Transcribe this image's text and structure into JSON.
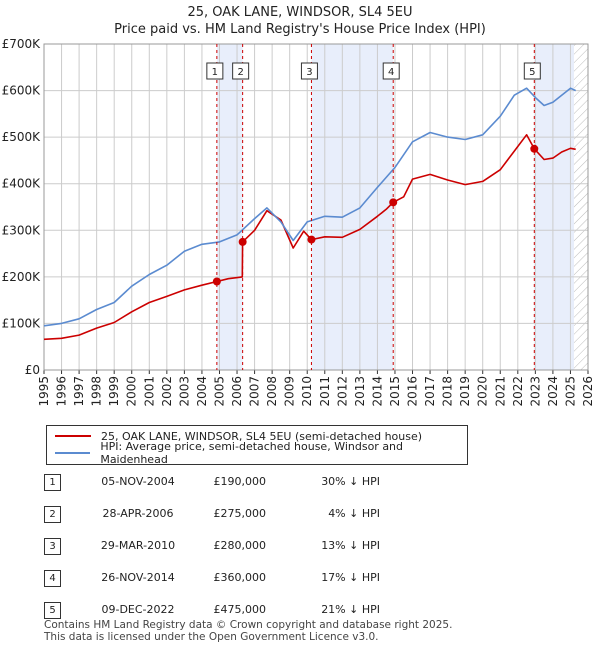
{
  "title_line1": "25, OAK LANE, WINDSOR, SL4 5EU",
  "title_line2": "Price paid vs. HM Land Registry's House Price Index (HPI)",
  "legend": {
    "property": "25, OAK LANE, WINDSOR, SL4 5EU (semi-detached house)",
    "hpi": "HPI: Average price, semi-detached house, Windsor and Maidenhead"
  },
  "colors": {
    "property_line": "#cc0000",
    "hpi_line": "#5b8bd0",
    "highlight_band": "#e8eefb",
    "marker_line": "#cc0000",
    "grid": "#cccccc"
  },
  "sales": [
    {
      "num": "1",
      "date": "05-NOV-2004",
      "price": "£190,000",
      "hpi": "30% ↓ HPI"
    },
    {
      "num": "2",
      "date": "28-APR-2006",
      "price": "£275,000",
      "hpi": "4% ↓ HPI"
    },
    {
      "num": "3",
      "date": "29-MAR-2010",
      "price": "£280,000",
      "hpi": "13% ↓ HPI"
    },
    {
      "num": "4",
      "date": "26-NOV-2014",
      "price": "£360,000",
      "hpi": "17% ↓ HPI"
    },
    {
      "num": "5",
      "date": "09-DEC-2022",
      "price": "£475,000",
      "hpi": "21% ↓ HPI"
    }
  ],
  "footer_line1": "Contains HM Land Registry data © Crown copyright and database right 2025.",
  "footer_line2": "This data is licensed under the Open Government Licence v3.0.",
  "chart_data": {
    "type": "line",
    "title": "25, OAK LANE, WINDSOR, SL4 5EU — Price paid vs. HM Land Registry's House Price Index (HPI)",
    "xlim": [
      1995,
      2026
    ],
    "ylim": [
      0,
      700000
    ],
    "yticks": [
      0,
      100000,
      200000,
      300000,
      400000,
      500000,
      600000,
      700000
    ],
    "ytick_labels": [
      "£0",
      "£100K",
      "£200K",
      "£300K",
      "£400K",
      "£500K",
      "£600K",
      "£700K"
    ],
    "xticks": [
      1995,
      1996,
      1997,
      1998,
      1999,
      2000,
      2001,
      2002,
      2003,
      2004,
      2005,
      2006,
      2007,
      2008,
      2009,
      2010,
      2011,
      2012,
      2013,
      2014,
      2015,
      2016,
      2017,
      2018,
      2019,
      2020,
      2021,
      2022,
      2023,
      2024,
      2025,
      2026
    ],
    "highlight_bands": [
      [
        2004.85,
        2006.32
      ],
      [
        2010.24,
        2014.9
      ],
      [
        2022.94,
        2025.2
      ]
    ],
    "hatch_from": 2025.2,
    "sale_markers": [
      {
        "label": "1",
        "x": 2004.85,
        "y": 190000
      },
      {
        "label": "2",
        "x": 2006.32,
        "y": 275000
      },
      {
        "label": "3",
        "x": 2010.24,
        "y": 280000
      },
      {
        "label": "4",
        "x": 2014.9,
        "y": 360000
      },
      {
        "label": "5",
        "x": 2022.94,
        "y": 475000
      }
    ],
    "series": [
      {
        "name": "25, OAK LANE, WINDSOR, SL4 5EU (semi-detached house)",
        "x": [
          1995,
          1996,
          1997,
          1998,
          1999,
          2000,
          2001,
          2002,
          2003,
          2004,
          2004.85,
          2005.5,
          2006.3,
          2006.32,
          2007,
          2007.7,
          2008.5,
          2009.2,
          2009.8,
          2010.24,
          2011,
          2012,
          2013,
          2014,
          2014.5,
          2014.9,
          2015.5,
          2016,
          2017,
          2018,
          2019,
          2020,
          2021,
          2021.8,
          2022.5,
          2022.94,
          2023.5,
          2024,
          2024.5,
          2025,
          2025.3
        ],
        "values": [
          66000,
          68000,
          75000,
          90000,
          102000,
          125000,
          145000,
          158000,
          172000,
          182000,
          190000,
          196000,
          200000,
          275000,
          300000,
          342000,
          322000,
          262000,
          298000,
          280000,
          286000,
          285000,
          302000,
          330000,
          345000,
          360000,
          372000,
          410000,
          420000,
          408000,
          398000,
          405000,
          430000,
          470000,
          505000,
          475000,
          452000,
          455000,
          468000,
          476000,
          474000
        ]
      },
      {
        "name": "HPI: Average price, semi-detached house, Windsor and Maidenhead",
        "x": [
          1995,
          1996,
          1997,
          1998,
          1999,
          2000,
          2001,
          2002,
          2003,
          2004,
          2005,
          2006,
          2007,
          2007.7,
          2008.5,
          2009.2,
          2010,
          2011,
          2012,
          2013,
          2014,
          2015,
          2016,
          2017,
          2018,
          2019,
          2020,
          2021,
          2021.8,
          2022.5,
          2023,
          2023.5,
          2024,
          2024.5,
          2025,
          2025.3
        ],
        "values": [
          95000,
          100000,
          110000,
          130000,
          145000,
          180000,
          205000,
          225000,
          255000,
          270000,
          275000,
          290000,
          325000,
          348000,
          318000,
          278000,
          318000,
          330000,
          328000,
          348000,
          392000,
          435000,
          490000,
          510000,
          500000,
          495000,
          505000,
          545000,
          590000,
          605000,
          585000,
          568000,
          575000,
          590000,
          605000,
          600000
        ]
      }
    ]
  }
}
